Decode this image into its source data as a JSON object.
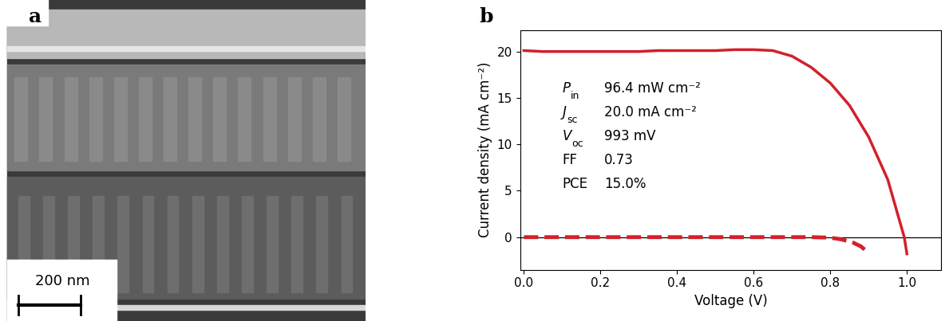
{
  "micrograph": {
    "panel": "a",
    "scale_bar": "200 nm"
  },
  "chart_data": {
    "type": "line",
    "panel": "b",
    "x_label": "Voltage (V)",
    "y_label": "Current density (mA cm⁻²)",
    "xlim": [
      -0.01,
      1.09
    ],
    "ylim": [
      -3.5,
      22.3
    ],
    "xticks": [
      0.0,
      0.2,
      0.4,
      0.6,
      0.8,
      1.0
    ],
    "yticks": [
      0,
      5,
      10,
      15,
      20
    ],
    "series": [
      {
        "color": "#d3202a",
        "line_style": "solid",
        "x": [
          0.0,
          0.05,
          0.1,
          0.15,
          0.2,
          0.25,
          0.3,
          0.35,
          0.4,
          0.45,
          0.5,
          0.55,
          0.6,
          0.65,
          0.7,
          0.75,
          0.8,
          0.85,
          0.9,
          0.95,
          0.993,
          1.0
        ],
        "values": [
          20.1,
          20.0,
          20.0,
          20.0,
          20.0,
          20.0,
          20.0,
          20.1,
          20.1,
          20.1,
          20.1,
          20.2,
          20.2,
          20.1,
          19.5,
          18.3,
          16.6,
          14.2,
          10.8,
          6.2,
          0.0,
          -1.8
        ]
      },
      {
        "color": "#d3202a",
        "line_style": "dashed",
        "x": [
          0.0,
          0.1,
          0.2,
          0.3,
          0.4,
          0.5,
          0.6,
          0.7,
          0.75,
          0.8,
          0.83,
          0.86,
          0.88,
          0.9
        ],
        "values": [
          0.0,
          0.0,
          0.0,
          0.0,
          0.0,
          0.0,
          0.0,
          0.0,
          0.0,
          -0.05,
          -0.25,
          -0.6,
          -1.0,
          -1.7
        ]
      }
    ],
    "annotations": [
      {
        "symbol": "P",
        "subscript": "in",
        "value": "96.4 mW cm⁻²"
      },
      {
        "symbol": "J",
        "subscript": "sc",
        "value": "20.0 mA cm⁻²"
      },
      {
        "symbol": "V",
        "subscript": "oc",
        "value": "993 mV"
      },
      {
        "symbol": "FF",
        "value": "0.73"
      },
      {
        "symbol": "PCE",
        "value": "15.0%"
      }
    ]
  }
}
